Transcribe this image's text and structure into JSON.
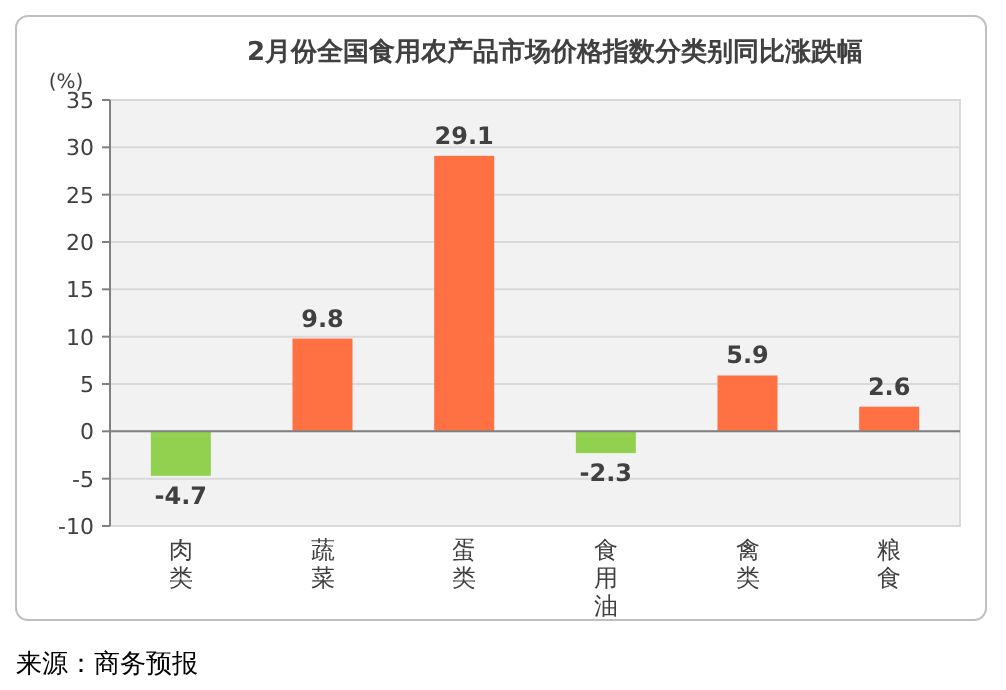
{
  "chart_data": {
    "type": "bar",
    "title": "2月份全国食用农产品市场价格指数分类别同比涨跌幅",
    "ylabel": "(%)",
    "categories": [
      "肉类",
      "蔬菜",
      "蛋类",
      "食用油",
      "禽类",
      "粮食"
    ],
    "values": [
      -4.7,
      9.8,
      29.1,
      -2.3,
      5.9,
      2.6
    ],
    "colors": [
      "#92d050",
      "#ff7043",
      "#ff7043",
      "#92d050",
      "#ff7043",
      "#ff7043"
    ],
    "data_labels": true,
    "ylim": [
      -10,
      35
    ],
    "yticks": [
      -10,
      -5,
      0,
      5,
      10,
      15,
      20,
      25,
      30,
      35
    ],
    "grid": "y",
    "annotations": [
      "来源：商务预报"
    ]
  }
}
